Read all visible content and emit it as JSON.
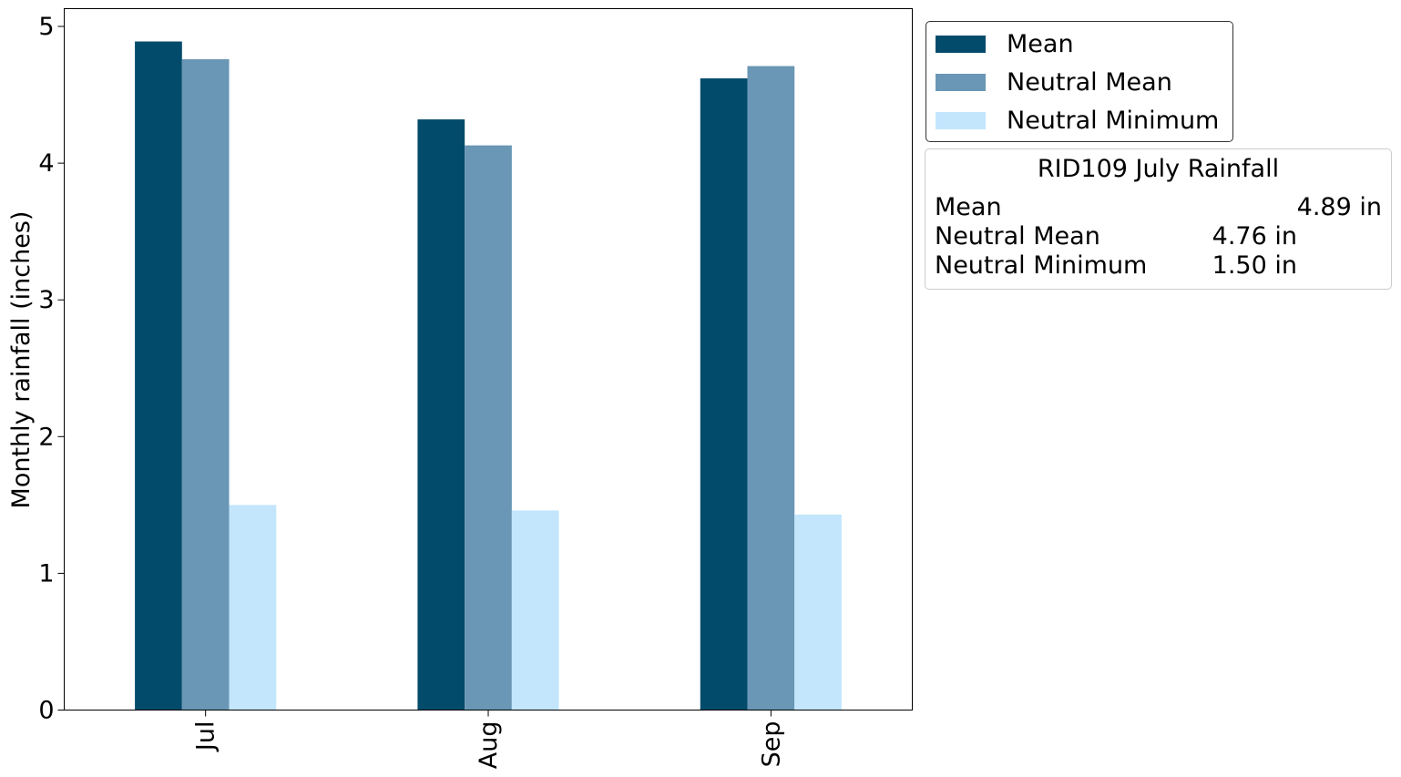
{
  "chart_data": {
    "type": "bar",
    "categories": [
      "Jul",
      "Aug",
      "Sep"
    ],
    "series": [
      {
        "name": "Mean",
        "color": "#034b6b",
        "values": [
          4.89,
          4.32,
          4.62
        ]
      },
      {
        "name": "Neutral Mean",
        "color": "#6997b5",
        "values": [
          4.76,
          4.13,
          4.71
        ]
      },
      {
        "name": "Neutral Minimum",
        "color": "#c3e6fc",
        "values": [
          1.5,
          1.46,
          1.43
        ]
      }
    ],
    "xlabel": "",
    "ylabel": "Monthly rainfall (inches)",
    "ylim": [
      0,
      5.13
    ],
    "yticks": [
      "0",
      "1",
      "2",
      "3",
      "4",
      "5"
    ],
    "grid": false,
    "legend_position": "outside top-right"
  },
  "info_box": {
    "title": "RID109 July Rainfall",
    "rows": [
      {
        "label": "Mean",
        "value": "4.89 in"
      },
      {
        "label": "Neutral Mean",
        "value": "4.76 in"
      },
      {
        "label": "Neutral Minimum",
        "value": "1.50 in"
      }
    ]
  }
}
